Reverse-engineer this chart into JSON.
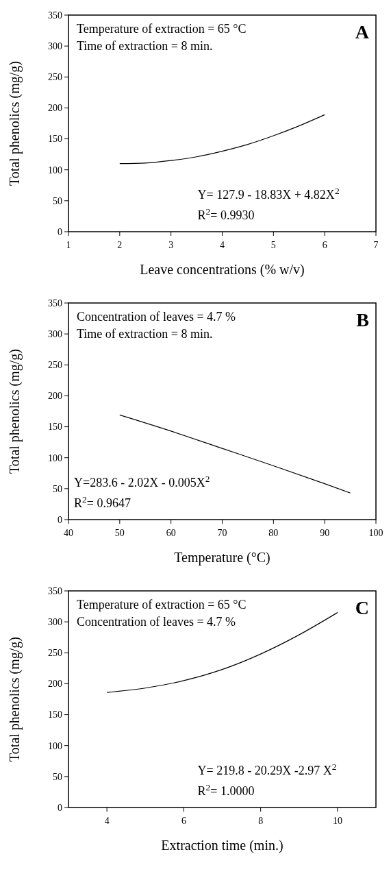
{
  "chart_data": [
    {
      "type": "line",
      "xlabel": "Leave concentrations (% w/v)",
      "ylabel": "Total phenolics (mg/g)",
      "xlim": [
        1,
        7
      ],
      "xticks": [
        1,
        2,
        3,
        4,
        5,
        6,
        7
      ],
      "ylim": [
        0,
        350
      ],
      "yticks": [
        0,
        50,
        100,
        150,
        200,
        250,
        300,
        350
      ],
      "annotations": [
        "A",
        "Temperature of extraction = 65 °C",
        "Time of extraction = 8 min.",
        "Y= 127.9 - 18.83X + 4.82X$^{2}$",
        "R$^{2}$= 0.9930"
      ],
      "series": [
        {
          "color": "#000000",
          "x": [
            2,
            2.5,
            3,
            3.5,
            4,
            4.5,
            5,
            5.5,
            6
          ],
          "values": [
            110,
            111,
            115,
            121,
            130,
            141,
            155,
            171,
            189
          ]
        }
      ]
    },
    {
      "type": "line",
      "xlabel": "Temperature (°C)",
      "ylabel": "Total phenolics (mg/g)",
      "xlim": [
        40,
        100
      ],
      "xticks": [
        40,
        50,
        60,
        70,
        80,
        90,
        100
      ],
      "ylim": [
        0,
        350
      ],
      "yticks": [
        0,
        50,
        100,
        150,
        200,
        250,
        300,
        350
      ],
      "annotations": [
        "B",
        "Concentration of leaves = 4.7 %",
        "Time of extraction = 8 min.",
        "Y=283.6 - 2.02X - 0.005X$^{2}$",
        "R$^{2}$= 0.9647"
      ],
      "series": [
        {
          "color": "#000000",
          "x": [
            50,
            60,
            70,
            80,
            90,
            95
          ],
          "values": [
            169,
            143,
            115,
            87,
            58,
            43
          ]
        }
      ]
    },
    {
      "type": "line",
      "xlabel": "Extraction time (min.)",
      "ylabel": "Total phenolics (mg/g)",
      "xlim": [
        3,
        11
      ],
      "xticks": [
        4,
        6,
        8,
        10
      ],
      "ylim": [
        0,
        350
      ],
      "yticks": [
        0,
        50,
        100,
        150,
        200,
        250,
        300,
        350
      ],
      "annotations": [
        "C",
        "Temperature of extraction = 65 °C",
        "Concentration of leaves = 4.7 %",
        "Y= 219.8 - 20.29X -2.97 X$^{2}$",
        "R$^{2}$= 1.0000"
      ],
      "series": [
        {
          "color": "#000000",
          "x": [
            4,
            5,
            6,
            7,
            8,
            9,
            10
          ],
          "values": [
            186,
            193,
            205,
            223,
            248,
            279,
            315
          ]
        }
      ]
    }
  ]
}
